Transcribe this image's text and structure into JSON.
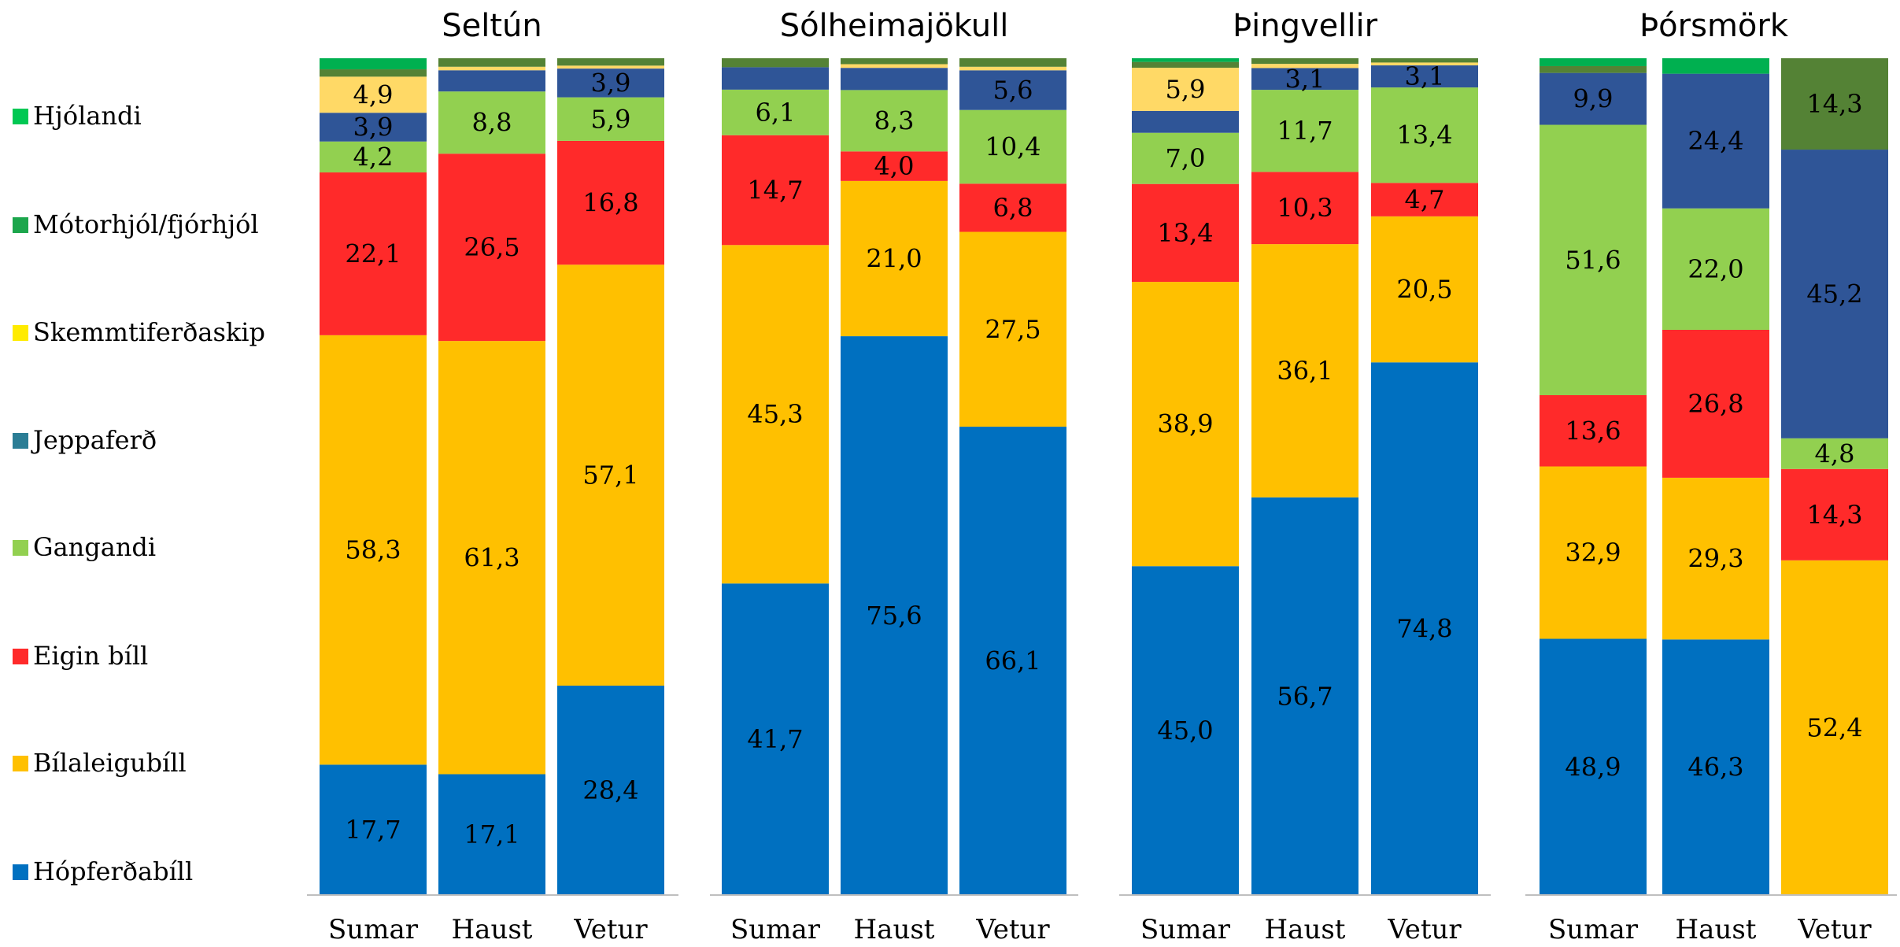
{
  "chart_data": {
    "type": "bar",
    "stacked": true,
    "normalized_percent": true,
    "legend_position": "left",
    "grid": false,
    "categories": [
      "Sumar",
      "Haust",
      "Vetur"
    ],
    "series_order": [
      "Hópferðabíll",
      "Bílaleigubíll",
      "Eigin bíll",
      "Gangandi",
      "Jeppaferð",
      "Skemmtiferðaskip",
      "Mótorhjól/fjórhjól",
      "Hjólandi"
    ],
    "legend": [
      {
        "name": "Hjólandi",
        "color": "#00c853"
      },
      {
        "name": "Mótorhjól/fjórhjól",
        "color": "#1ca64c"
      },
      {
        "name": "Skemmtiferðaskip",
        "color": "#ffeb00"
      },
      {
        "name": "Jeppaferð",
        "color": "#2b7d95"
      },
      {
        "name": "Gangandi",
        "color": "#92d050"
      },
      {
        "name": "Eigin bíll",
        "color": "#ff2a2a"
      },
      {
        "name": "Bílaleigubíll",
        "color": "#ffc000"
      },
      {
        "name": "Hópferðabíll",
        "color": "#0070c0"
      }
    ],
    "panels": [
      {
        "title": "Seltún",
        "bars": [
          {
            "category": "Sumar",
            "segments": [
              {
                "series": "Hópferðabíll",
                "value": 17.7,
                "label": "17,7",
                "color": "#0070c0"
              },
              {
                "series": "Bílaleigubíll",
                "value": 58.3,
                "label": "58,3",
                "color": "#ffc000"
              },
              {
                "series": "Eigin bíll",
                "value": 22.1,
                "label": "22,1",
                "color": "#ff2a2a"
              },
              {
                "series": "Gangandi",
                "value": 4.2,
                "label": "4,2",
                "color": "#92d050"
              },
              {
                "series": "Jeppaferð",
                "value": 3.9,
                "label": "3,9",
                "color": "#2f5597"
              },
              {
                "series": "Skemmtiferðaskip",
                "value": 4.9,
                "label": "4,9",
                "color": "#ffd966"
              },
              {
                "series": "Mótorhjól/fjórhjól",
                "value": 1.0,
                "label": "",
                "color": "#548235"
              },
              {
                "series": "Hjólandi",
                "value": 1.5,
                "label": "",
                "color": "#00b050"
              }
            ]
          },
          {
            "category": "Haust",
            "segments": [
              {
                "series": "Hópferðabíll",
                "value": 17.1,
                "label": "17,1",
                "color": "#0070c0"
              },
              {
                "series": "Bílaleigubíll",
                "value": 61.3,
                "label": "61,3",
                "color": "#ffc000"
              },
              {
                "series": "Eigin bíll",
                "value": 26.5,
                "label": "26,5",
                "color": "#ff2a2a"
              },
              {
                "series": "Gangandi",
                "value": 8.8,
                "label": "8,8",
                "color": "#92d050"
              },
              {
                "series": "Jeppaferð",
                "value": 3.0,
                "label": "",
                "color": "#2f5597"
              },
              {
                "series": "Skemmtiferðaskip",
                "value": 0.5,
                "label": "",
                "color": "#ffd966"
              },
              {
                "series": "Mótorhjól/fjórhjól",
                "value": 1.2,
                "label": "",
                "color": "#548235"
              }
            ]
          },
          {
            "category": "Vetur",
            "segments": [
              {
                "series": "Hópferðabíll",
                "value": 28.4,
                "label": "28,4",
                "color": "#0070c0"
              },
              {
                "series": "Bílaleigubíll",
                "value": 57.1,
                "label": "57,1",
                "color": "#ffc000"
              },
              {
                "series": "Eigin bíll",
                "value": 16.8,
                "label": "16,8",
                "color": "#ff2a2a"
              },
              {
                "series": "Gangandi",
                "value": 5.9,
                "label": "5,9",
                "color": "#92d050"
              },
              {
                "series": "Jeppaferð",
                "value": 3.9,
                "label": "3,9",
                "color": "#2f5597"
              },
              {
                "series": "Skemmtiferðaskip",
                "value": 0.4,
                "label": "",
                "color": "#ffd966"
              },
              {
                "series": "Mótorhjól/fjórhjól",
                "value": 1.0,
                "label": "",
                "color": "#548235"
              }
            ]
          }
        ]
      },
      {
        "title": "Sólheimajökull",
        "bars": [
          {
            "category": "Sumar",
            "segments": [
              {
                "series": "Hópferðabíll",
                "value": 41.7,
                "label": "41,7",
                "color": "#0070c0"
              },
              {
                "series": "Bílaleigubíll",
                "value": 45.3,
                "label": "45,3",
                "color": "#ffc000"
              },
              {
                "series": "Eigin bíll",
                "value": 14.7,
                "label": "14,7",
                "color": "#ff2a2a"
              },
              {
                "series": "Gangandi",
                "value": 6.1,
                "label": "6,1",
                "color": "#92d050"
              },
              {
                "series": "Jeppaferð",
                "value": 3.0,
                "label": "",
                "color": "#2f5597"
              },
              {
                "series": "Mótorhjól/fjórhjól",
                "value": 1.2,
                "label": "",
                "color": "#548235"
              }
            ]
          },
          {
            "category": "Haust",
            "segments": [
              {
                "series": "Hópferðabíll",
                "value": 75.6,
                "label": "75,6",
                "color": "#0070c0"
              },
              {
                "series": "Bílaleigubíll",
                "value": 21.0,
                "label": "21,0",
                "color": "#ffc000"
              },
              {
                "series": "Eigin bíll",
                "value": 4.0,
                "label": "4,0",
                "color": "#ff2a2a"
              },
              {
                "series": "Gangandi",
                "value": 8.3,
                "label": "8,3",
                "color": "#92d050"
              },
              {
                "series": "Jeppaferð",
                "value": 3.0,
                "label": "",
                "color": "#2f5597"
              },
              {
                "series": "Skemmtiferðaskip",
                "value": 0.5,
                "label": "",
                "color": "#ffd966"
              },
              {
                "series": "Mótorhjól/fjórhjól",
                "value": 0.8,
                "label": "",
                "color": "#548235"
              }
            ]
          },
          {
            "category": "Vetur",
            "segments": [
              {
                "series": "Hópferðabíll",
                "value": 66.1,
                "label": "66,1",
                "color": "#0070c0"
              },
              {
                "series": "Bílaleigubíll",
                "value": 27.5,
                "label": "27,5",
                "color": "#ffc000"
              },
              {
                "series": "Eigin bíll",
                "value": 6.8,
                "label": "6,8",
                "color": "#ff2a2a"
              },
              {
                "series": "Gangandi",
                "value": 10.4,
                "label": "10,4",
                "color": "#92d050"
              },
              {
                "series": "Jeppaferð",
                "value": 5.6,
                "label": "5,6",
                "color": "#2f5597"
              },
              {
                "series": "Skemmtiferðaskip",
                "value": 0.5,
                "label": "",
                "color": "#ffd966"
              },
              {
                "series": "Mótorhjól/fjórhjól",
                "value": 1.2,
                "label": "",
                "color": "#548235"
              }
            ]
          }
        ]
      },
      {
        "title": "Þingvellir",
        "bars": [
          {
            "category": "Sumar",
            "segments": [
              {
                "series": "Hópferðabíll",
                "value": 45.0,
                "label": "45,0",
                "color": "#0070c0"
              },
              {
                "series": "Bílaleigubíll",
                "value": 38.9,
                "label": "38,9",
                "color": "#ffc000"
              },
              {
                "series": "Eigin bíll",
                "value": 13.4,
                "label": "13,4",
                "color": "#ff2a2a"
              },
              {
                "series": "Gangandi",
                "value": 7.0,
                "label": "7,0",
                "color": "#92d050"
              },
              {
                "series": "Jeppaferð",
                "value": 3.0,
                "label": "",
                "color": "#2f5597"
              },
              {
                "series": "Skemmtiferðaskip",
                "value": 5.9,
                "label": "5,9",
                "color": "#ffd966"
              },
              {
                "series": "Mótorhjól/fjórhjól",
                "value": 0.8,
                "label": "",
                "color": "#548235"
              },
              {
                "series": "Hjólandi",
                "value": 0.5,
                "label": "",
                "color": "#00b050"
              }
            ]
          },
          {
            "category": "Haust",
            "segments": [
              {
                "series": "Hópferðabíll",
                "value": 56.7,
                "label": "56,7",
                "color": "#0070c0"
              },
              {
                "series": "Bílaleigubíll",
                "value": 36.1,
                "label": "36,1",
                "color": "#ffc000"
              },
              {
                "series": "Eigin bíll",
                "value": 10.3,
                "label": "10,3",
                "color": "#ff2a2a"
              },
              {
                "series": "Gangandi",
                "value": 11.7,
                "label": "11,7",
                "color": "#92d050"
              },
              {
                "series": "Jeppaferð",
                "value": 3.1,
                "label": "3,1",
                "color": "#2f5597"
              },
              {
                "series": "Skemmtiferðaskip",
                "value": 0.6,
                "label": "",
                "color": "#ffd966"
              },
              {
                "series": "Mótorhjól/fjórhjól",
                "value": 0.8,
                "label": "",
                "color": "#548235"
              }
            ]
          },
          {
            "category": "Vetur",
            "segments": [
              {
                "series": "Hópferðabíll",
                "value": 74.8,
                "label": "74,8",
                "color": "#0070c0"
              },
              {
                "series": "Bílaleigubíll",
                "value": 20.5,
                "label": "20,5",
                "color": "#ffc000"
              },
              {
                "series": "Eigin bíll",
                "value": 4.7,
                "label": "4,7",
                "color": "#ff2a2a"
              },
              {
                "series": "Gangandi",
                "value": 13.4,
                "label": "13,4",
                "color": "#92d050"
              },
              {
                "series": "Jeppaferð",
                "value": 3.1,
                "label": "3,1",
                "color": "#2f5597"
              },
              {
                "series": "Skemmtiferðaskip",
                "value": 0.4,
                "label": "",
                "color": "#ffd966"
              },
              {
                "series": "Mótorhjól/fjórhjól",
                "value": 0.6,
                "label": "",
                "color": "#548235"
              }
            ]
          }
        ]
      },
      {
        "title": "Þórsmörk",
        "bars": [
          {
            "category": "Sumar",
            "segments": [
              {
                "series": "Hópferðabíll",
                "value": 48.9,
                "label": "48,9",
                "color": "#0070c0"
              },
              {
                "series": "Bílaleigubíll",
                "value": 32.9,
                "label": "32,9",
                "color": "#ffc000"
              },
              {
                "series": "Eigin bíll",
                "value": 13.6,
                "label": "13,6",
                "color": "#ff2a2a"
              },
              {
                "series": "Gangandi",
                "value": 51.6,
                "label": "51,6",
                "color": "#92d050"
              },
              {
                "series": "Jeppaferð",
                "value": 9.9,
                "label": "9,9",
                "color": "#2f5597"
              },
              {
                "series": "Mótorhjól/fjórhjól",
                "value": 1.3,
                "label": "",
                "color": "#548235"
              },
              {
                "series": "Hjólandi",
                "value": 1.5,
                "label": "",
                "color": "#00b050"
              }
            ]
          },
          {
            "category": "Haust",
            "segments": [
              {
                "series": "Hópferðabíll",
                "value": 46.3,
                "label": "46,3",
                "color": "#0070c0"
              },
              {
                "series": "Bílaleigubíll",
                "value": 29.3,
                "label": "29,3",
                "color": "#ffc000"
              },
              {
                "series": "Eigin bíll",
                "value": 26.8,
                "label": "26,8",
                "color": "#ff2a2a"
              },
              {
                "series": "Gangandi",
                "value": 22.0,
                "label": "22,0",
                "color": "#92d050"
              },
              {
                "series": "Jeppaferð",
                "value": 24.4,
                "label": "24,4",
                "color": "#2f5597"
              },
              {
                "series": "Hjólandi",
                "value": 2.8,
                "label": "",
                "color": "#00b050"
              }
            ]
          },
          {
            "category": "Vetur",
            "segments": [
              {
                "series": "Bílaleigubíll",
                "value": 52.4,
                "label": "52,4",
                "color": "#ffc000"
              },
              {
                "series": "Eigin bíll",
                "value": 14.3,
                "label": "14,3",
                "color": "#ff2a2a"
              },
              {
                "series": "Gangandi",
                "value": 4.8,
                "label": "4,8",
                "color": "#92d050"
              },
              {
                "series": "Jeppaferð",
                "value": 45.2,
                "label": "45,2",
                "color": "#2f5597"
              },
              {
                "series": "Mótorhjól/fjórhjól",
                "value": 14.3,
                "label": "14,3",
                "color": "#548235"
              }
            ]
          }
        ]
      }
    ]
  }
}
